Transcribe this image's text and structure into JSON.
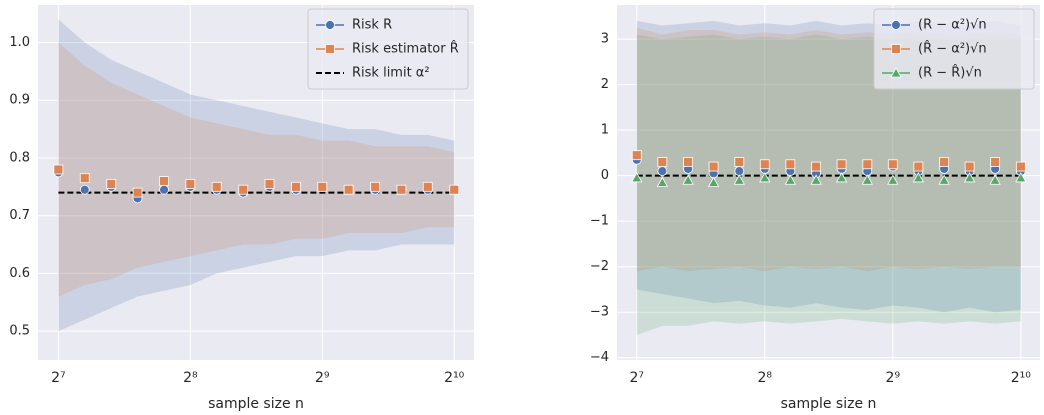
{
  "chart_data": [
    {
      "type": "line",
      "xscale": "log2",
      "grid": true,
      "legend": "upper right",
      "x_label": "sample size n",
      "x": [
        128,
        147,
        169,
        194,
        223,
        256,
        294,
        338,
        388,
        446,
        512,
        588,
        676,
        776,
        891,
        1024
      ],
      "xlim": [
        115,
        1136
      ],
      "xticks": [
        {
          "value": 128,
          "label": "2⁷"
        },
        {
          "value": 256,
          "label": "2⁸"
        },
        {
          "value": 512,
          "label": "2⁹"
        },
        {
          "value": 1024,
          "label": "2¹⁰"
        }
      ],
      "ylim": [
        0.45,
        1.065
      ],
      "yticks": [
        0.5,
        0.6,
        0.7,
        0.8,
        0.9,
        {
          "value": 1,
          "label": "1.0"
        }
      ],
      "series": [
        {
          "name": "Risk R",
          "color": "#4c72b0",
          "marker": "circle",
          "values": [
            0.775,
            0.745,
            0.75,
            0.73,
            0.745,
            0.75,
            0.745,
            0.74,
            0.75,
            0.745,
            0.75,
            0.745,
            0.745,
            0.745,
            0.745,
            0.745
          ],
          "upper": [
            1.04,
            1.0,
            0.97,
            0.95,
            0.93,
            0.91,
            0.9,
            0.89,
            0.88,
            0.87,
            0.86,
            0.85,
            0.85,
            0.84,
            0.84,
            0.83
          ],
          "lower": [
            0.5,
            0.52,
            0.54,
            0.56,
            0.57,
            0.58,
            0.6,
            0.61,
            0.62,
            0.63,
            0.63,
            0.64,
            0.64,
            0.65,
            0.65,
            0.65
          ]
        },
        {
          "name": "Risk estimator R̂",
          "color": "#dd8452",
          "marker": "square",
          "values": [
            0.78,
            0.765,
            0.755,
            0.74,
            0.76,
            0.755,
            0.75,
            0.745,
            0.755,
            0.75,
            0.75,
            0.745,
            0.75,
            0.745,
            0.75,
            0.745
          ],
          "upper": [
            1.0,
            0.96,
            0.93,
            0.91,
            0.89,
            0.87,
            0.86,
            0.85,
            0.84,
            0.84,
            0.83,
            0.83,
            0.82,
            0.82,
            0.82,
            0.81
          ],
          "lower": [
            0.56,
            0.58,
            0.59,
            0.61,
            0.62,
            0.63,
            0.64,
            0.65,
            0.65,
            0.66,
            0.66,
            0.67,
            0.67,
            0.67,
            0.68,
            0.68
          ]
        }
      ],
      "hline": {
        "name": "Risk limit α²",
        "value": 0.74,
        "color": "#000000"
      }
    },
    {
      "type": "line",
      "xscale": "log2",
      "grid": true,
      "legend": "upper right",
      "x_label": "sample size n",
      "x": [
        128,
        147,
        169,
        194,
        223,
        256,
        294,
        338,
        388,
        446,
        512,
        588,
        676,
        776,
        891,
        1024
      ],
      "xlim": [
        115,
        1136
      ],
      "xticks": [
        {
          "value": 128,
          "label": "2⁷"
        },
        {
          "value": 256,
          "label": "2⁸"
        },
        {
          "value": 512,
          "label": "2⁹"
        },
        {
          "value": 1024,
          "label": "2¹⁰"
        }
      ],
      "ylim": [
        -4.05,
        3.75
      ],
      "yticks": [
        {
          "value": -4,
          "label": "−4"
        },
        {
          "value": -3,
          "label": "−3"
        },
        {
          "value": -2,
          "label": "−2"
        },
        {
          "value": -1,
          "label": "−1"
        },
        0,
        1,
        2,
        3
      ],
      "series": [
        {
          "name": "(R − α²)√n",
          "color": "#4c72b0",
          "marker": "circle",
          "values": [
            0.35,
            0.1,
            0.15,
            0.05,
            0.1,
            0.15,
            0.1,
            0.05,
            0.15,
            0.1,
            0.2,
            0.1,
            0.15,
            0.1,
            0.15,
            0.1
          ],
          "upper": [
            3.4,
            3.3,
            3.35,
            3.4,
            3.3,
            3.35,
            3.3,
            3.4,
            3.3,
            3.35,
            3.3,
            3.4,
            3.35,
            3.3,
            3.4,
            3.3
          ],
          "lower": [
            -2.5,
            -2.6,
            -2.7,
            -2.8,
            -2.75,
            -2.85,
            -2.9,
            -2.8,
            -2.9,
            -2.95,
            -2.85,
            -2.9,
            -3.0,
            -2.9,
            -3.0,
            -2.95
          ]
        },
        {
          "name": "(R̂ − α²)√n",
          "color": "#dd8452",
          "marker": "square",
          "values": [
            0.45,
            0.3,
            0.3,
            0.2,
            0.3,
            0.25,
            0.25,
            0.2,
            0.25,
            0.25,
            0.25,
            0.2,
            0.3,
            0.2,
            0.3,
            0.2
          ],
          "upper": [
            3.25,
            3.1,
            3.2,
            3.2,
            3.1,
            3.15,
            3.1,
            3.2,
            3.1,
            3.15,
            3.1,
            3.15,
            3.1,
            3.1,
            3.15,
            3.1
          ],
          "lower": [
            -2.1,
            -2.0,
            -2.1,
            -2.05,
            -2.0,
            -2.1,
            -2.0,
            -2.05,
            -2.0,
            -2.1,
            -2.0,
            -2.05,
            -2.0,
            -2.05,
            -2.0,
            -2.0
          ]
        },
        {
          "name": "(R − R̂)√n",
          "color": "#55a868",
          "marker": "triangle",
          "values": [
            -0.05,
            -0.15,
            -0.1,
            -0.15,
            -0.1,
            -0.05,
            -0.1,
            -0.1,
            -0.05,
            -0.1,
            -0.1,
            -0.05,
            -0.1,
            -0.05,
            -0.1,
            -0.05
          ],
          "upper": [
            3.1,
            3.0,
            3.05,
            3.1,
            3.0,
            3.05,
            3.0,
            3.1,
            3.0,
            3.05,
            3.0,
            3.05,
            3.0,
            3.0,
            3.05,
            3.0
          ],
          "lower": [
            -3.5,
            -3.3,
            -3.3,
            -3.2,
            -3.25,
            -3.2,
            -3.25,
            -3.2,
            -3.15,
            -3.2,
            -3.25,
            -3.2,
            -3.25,
            -3.2,
            -3.25,
            -3.2
          ]
        }
      ],
      "hline": {
        "value": 0,
        "color": "#000000"
      }
    }
  ]
}
